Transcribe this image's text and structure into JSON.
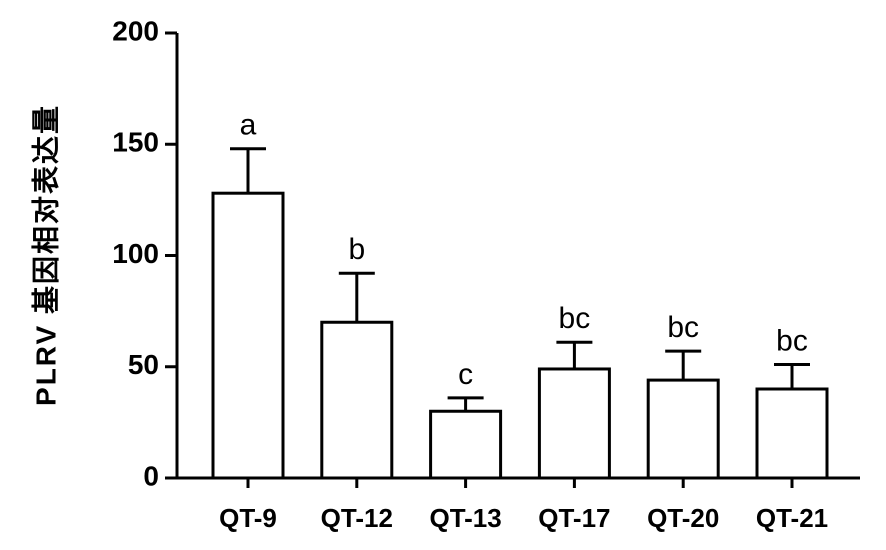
{
  "chart_data": {
    "type": "bar",
    "y_label": "PLRV 基因相对表达量",
    "categories": [
      "QT-9",
      "QT-12",
      "QT-13",
      "QT-17",
      "QT-20",
      "QT-21"
    ],
    "values": [
      128,
      70,
      30,
      49,
      44,
      40
    ],
    "errors": [
      20,
      22,
      6,
      12,
      13,
      11
    ],
    "significance": [
      "a",
      "b",
      "c",
      "bc",
      "bc",
      "bc"
    ],
    "color": "#ffffff",
    "edge_color": "#000000",
    "ylim": [
      0,
      200
    ],
    "yticks": [
      0,
      50,
      100,
      150,
      200
    ],
    "grid": false
  }
}
